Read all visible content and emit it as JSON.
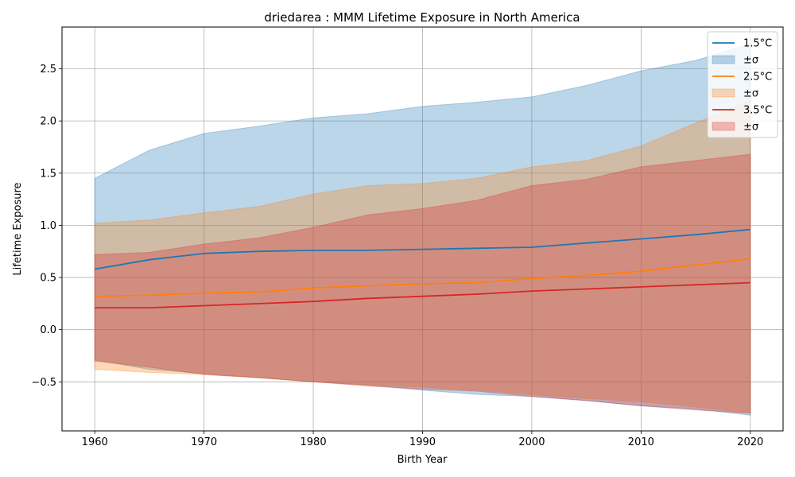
{
  "chart_data": {
    "type": "area",
    "title": "driedarea : MMM Lifetime Exposure in North America",
    "xlabel": "Birth Year",
    "ylabel": "Lifetime Exposure",
    "xlim": [
      1957,
      2023
    ],
    "ylim": [
      -0.97,
      2.9
    ],
    "xticks": [
      1960,
      1970,
      1980,
      1990,
      2000,
      2010,
      2020
    ],
    "yticks": [
      -0.5,
      0.0,
      0.5,
      1.0,
      1.5,
      2.0,
      2.5
    ],
    "ytick_labels": [
      "−0.5",
      "0.0",
      "0.5",
      "1.0",
      "1.5",
      "2.0",
      "2.5"
    ],
    "grid": true,
    "legend_position": "top-right",
    "legend_entries": [
      "1.5°C",
      "±σ",
      "2.5°C",
      "±σ",
      "3.5°C",
      "±σ"
    ],
    "x": [
      1960,
      1965,
      1970,
      1975,
      1980,
      1985,
      1990,
      1995,
      2000,
      2005,
      2010,
      2015,
      2020
    ],
    "series": [
      {
        "name": "1.5°C",
        "color": "#1f77b4",
        "band_color": "#1f77b4",
        "mean": [
          0.58,
          0.67,
          0.73,
          0.75,
          0.76,
          0.76,
          0.77,
          0.78,
          0.79,
          0.83,
          0.87,
          0.91,
          0.96
        ],
        "upper": [
          1.45,
          1.72,
          1.88,
          1.95,
          2.03,
          2.07,
          2.14,
          2.18,
          2.23,
          2.34,
          2.48,
          2.58,
          2.74
        ],
        "lower": [
          -0.29,
          -0.38,
          -0.42,
          -0.46,
          -0.5,
          -0.53,
          -0.58,
          -0.62,
          -0.64,
          -0.68,
          -0.73,
          -0.76,
          -0.82
        ]
      },
      {
        "name": "2.5°C",
        "color": "#ff7f0e",
        "band_color": "#ff7f0e",
        "mean": [
          0.32,
          0.33,
          0.35,
          0.36,
          0.4,
          0.42,
          0.44,
          0.45,
          0.49,
          0.52,
          0.56,
          0.62,
          0.68
        ],
        "upper": [
          1.02,
          1.05,
          1.12,
          1.18,
          1.3,
          1.38,
          1.4,
          1.45,
          1.56,
          1.62,
          1.76,
          1.98,
          2.2
        ],
        "lower": [
          -0.38,
          -0.41,
          -0.43,
          -0.46,
          -0.5,
          -0.53,
          -0.55,
          -0.58,
          -0.62,
          -0.66,
          -0.69,
          -0.74,
          -0.8
        ]
      },
      {
        "name": "3.5°C",
        "color": "#d62728",
        "band_color": "#d62728",
        "mean": [
          0.21,
          0.21,
          0.23,
          0.25,
          0.27,
          0.3,
          0.32,
          0.34,
          0.37,
          0.39,
          0.41,
          0.43,
          0.45
        ],
        "upper": [
          0.72,
          0.74,
          0.82,
          0.88,
          0.98,
          1.1,
          1.16,
          1.24,
          1.38,
          1.44,
          1.56,
          1.62,
          1.68
        ],
        "lower": [
          -0.3,
          -0.36,
          -0.43,
          -0.46,
          -0.5,
          -0.54,
          -0.57,
          -0.59,
          -0.64,
          -0.68,
          -0.73,
          -0.77,
          -0.8
        ]
      }
    ]
  }
}
